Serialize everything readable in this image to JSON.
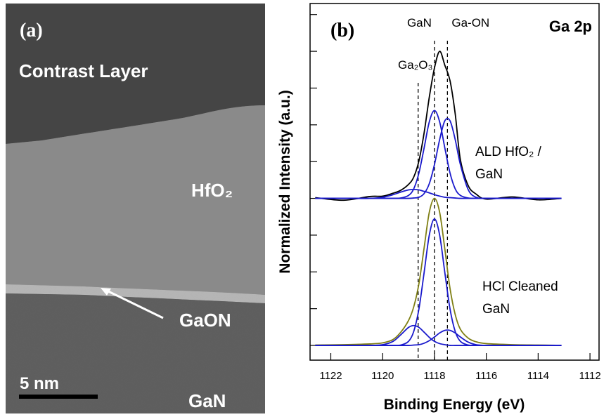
{
  "image_panel": {
    "panel_label": "(a)",
    "labels": [
      "Contrast Layer",
      "HfO₂",
      "GaON",
      "GaN"
    ],
    "scale_bar": "5 nm"
  },
  "chart_data": {
    "type": "line",
    "panel_label": "(b)",
    "title": "Ga 2p",
    "x_label": "Binding Energy (eV)",
    "y_label": "Normalized Intensity (a.u.)",
    "x": [
      1122.6,
      1121.5,
      1120.5,
      1120.0,
      1119.6,
      1119.3,
      1119.0,
      1118.8,
      1118.6,
      1118.4,
      1118.2,
      1118.0,
      1117.8,
      1117.6,
      1117.4,
      1117.2,
      1117.0,
      1116.7,
      1116.4,
      1116.0,
      1115.0,
      1114.0,
      1113.1
    ],
    "series": [
      {
        "color": "#000000",
        "values": [
          4.02,
          3.95,
          4.05,
          4.06,
          4.14,
          4.22,
          4.38,
          4.58,
          5.02,
          5.78,
          6.75,
          7.55,
          8.0,
          7.62,
          7.2,
          6.3,
          5.05,
          4.35,
          4.12,
          3.98,
          4.04,
          3.96,
          4.0
        ]
      },
      {
        "color": "#1a1acc",
        "values": [
          4.0,
          4.0,
          4.0,
          4.0,
          4.0,
          4.01,
          4.08,
          4.26,
          4.69,
          5.37,
          6.08,
          6.39,
          6.08,
          5.37,
          4.69,
          4.26,
          4.08,
          4.01,
          4.0,
          4.0,
          4.0,
          4.0,
          4.0
        ]
      },
      {
        "color": "#1a1acc",
        "values": [
          4.0,
          4.0,
          4.0,
          4.0,
          4.0,
          4.0,
          4.0,
          4.01,
          4.03,
          4.13,
          4.4,
          4.92,
          5.6,
          6.11,
          6.11,
          5.6,
          4.92,
          4.24,
          4.03,
          4.0,
          4.0,
          4.0,
          4.0
        ]
      },
      {
        "color": "#1a1acc",
        "values": [
          4.0,
          4.0,
          4.0,
          4.03,
          4.1,
          4.17,
          4.23,
          4.24,
          4.23,
          4.19,
          4.15,
          4.1,
          4.06,
          4.03,
          4.02,
          4.01,
          4.0,
          4.0,
          4.0,
          4.0,
          4.0,
          4.0,
          4.0
        ]
      },
      {
        "color": "#7f7f14",
        "values": [
          0.01,
          0.02,
          0.04,
          0.07,
          0.16,
          0.36,
          0.68,
          1.05,
          1.68,
          2.65,
          3.62,
          4.0,
          3.62,
          2.62,
          1.55,
          0.84,
          0.44,
          0.2,
          0.1,
          0.05,
          0.02,
          0.01,
          0.0
        ]
      },
      {
        "color": "#1a1acc",
        "values": [
          0,
          0,
          0,
          0,
          0,
          0.01,
          0.11,
          0.38,
          0.99,
          1.98,
          3.0,
          3.44,
          3.0,
          1.98,
          0.99,
          0.38,
          0.11,
          0.01,
          0,
          0,
          0,
          0,
          0
        ]
      },
      {
        "color": "#1a1acc",
        "values": [
          0,
          0,
          0,
          0.02,
          0.11,
          0.29,
          0.49,
          0.54,
          0.49,
          0.36,
          0.22,
          0.11,
          0.05,
          0.02,
          0.0,
          0,
          0,
          0,
          0,
          0,
          0,
          0,
          0
        ]
      },
      {
        "color": "#1a1acc",
        "values": [
          0,
          0,
          0,
          0,
          0,
          0,
          0,
          0.01,
          0.02,
          0.06,
          0.13,
          0.23,
          0.34,
          0.41,
          0.41,
          0.34,
          0.23,
          0.09,
          0.02,
          0,
          0,
          0,
          0
        ]
      }
    ],
    "reference_lines": [
      {
        "label": "Ga₂O₃",
        "x": 1118.63
      },
      {
        "label": "GaN",
        "x": 1118.0
      },
      {
        "label": "Ga-ON",
        "x": 1117.5
      }
    ],
    "annotations": [
      {
        "lines": [
          "ALD HfO₂ /",
          "GaN"
        ]
      },
      {
        "lines": [
          "HCl Cleaned",
          "GaN"
        ]
      }
    ],
    "xlim": [
      1122.8,
      1111.65
    ],
    "xticks": [
      1122,
      1120,
      1118,
      1116,
      1114,
      1112
    ],
    "ylim": [
      -0.4,
      9.3
    ],
    "yticks": [
      0,
      1,
      2,
      3,
      4,
      5,
      6,
      7,
      8,
      9
    ]
  }
}
